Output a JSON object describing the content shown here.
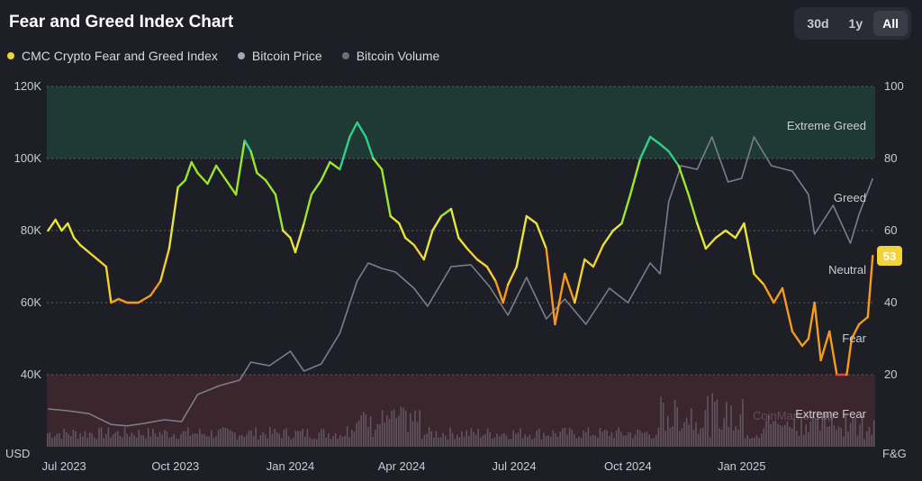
{
  "header": {
    "title": "Fear and Greed Index Chart",
    "ranges": [
      "30d",
      "1y",
      "All"
    ],
    "active_range": "All"
  },
  "legend": [
    {
      "label": "CMC Crypto Fear and Greed Index",
      "color": "#f3d23a"
    },
    {
      "label": "Bitcoin Price",
      "color": "#a4a7b3"
    },
    {
      "label": "Bitcoin Volume",
      "color": "#6b6e7a"
    }
  ],
  "chart_data": {
    "type": "line",
    "left_axis": {
      "unit_label": "USD",
      "ticks": [
        "40K",
        "60K",
        "80K",
        "100K",
        "120K"
      ],
      "range": [
        20000,
        120000
      ]
    },
    "right_axis": {
      "unit_label": "F&G",
      "ticks": [
        "20",
        "40",
        "60",
        "80",
        "100"
      ],
      "range": [
        0,
        100
      ]
    },
    "x_axis": {
      "ticks": [
        "Jul 2023",
        "Oct 2023",
        "Jan 2024",
        "Apr 2024",
        "Jul 2024",
        "Oct 2024",
        "Jan 2025"
      ]
    },
    "zones": [
      {
        "label": "Extreme Greed",
        "from": 80,
        "to": 100,
        "color": "#1f3a35"
      },
      {
        "label": "Greed",
        "from": 60,
        "to": 80
      },
      {
        "label": "Neutral",
        "from": 40,
        "to": 60
      },
      {
        "label": "Fear",
        "from": 20,
        "to": 40
      },
      {
        "label": "Extreme Fear",
        "from": 0,
        "to": 20,
        "color": "#3a262c"
      }
    ],
    "current_value": "53",
    "watermark": "CoinMarketCap",
    "series": [
      {
        "name": "CMC Crypto Fear and Greed Index",
        "axis": "right",
        "x": [
          "2023-06-29",
          "2023-07-05",
          "2023-07-10",
          "2023-07-15",
          "2023-07-20",
          "2023-07-25",
          "2023-08-01",
          "2023-08-08",
          "2023-08-15",
          "2023-08-19",
          "2023-08-25",
          "2023-09-01",
          "2023-09-10",
          "2023-09-20",
          "2023-09-28",
          "2023-10-05",
          "2023-10-12",
          "2023-10-18",
          "2023-10-23",
          "2023-10-28",
          "2023-11-05",
          "2023-11-12",
          "2023-11-20",
          "2023-11-28",
          "2023-12-05",
          "2023-12-10",
          "2023-12-15",
          "2023-12-22",
          "2023-12-30",
          "2024-01-05",
          "2024-01-11",
          "2024-01-15",
          "2024-01-22",
          "2024-01-28",
          "2024-02-05",
          "2024-02-12",
          "2024-02-20",
          "2024-02-28",
          "2024-03-05",
          "2024-03-12",
          "2024-03-18",
          "2024-03-25",
          "2024-04-01",
          "2024-04-08",
          "2024-04-13",
          "2024-04-20",
          "2024-04-28",
          "2024-05-05",
          "2024-05-12",
          "2024-05-20",
          "2024-05-26",
          "2024-06-02",
          "2024-06-10",
          "2024-06-18",
          "2024-06-25",
          "2024-07-01",
          "2024-07-05",
          "2024-07-12",
          "2024-07-20",
          "2024-07-28",
          "2024-08-05",
          "2024-08-12",
          "2024-08-20",
          "2024-08-28",
          "2024-09-05",
          "2024-09-12",
          "2024-09-20",
          "2024-09-28",
          "2024-10-05",
          "2024-10-12",
          "2024-10-20",
          "2024-10-28",
          "2024-11-05",
          "2024-11-12",
          "2024-11-20",
          "2024-11-28",
          "2024-12-05",
          "2024-12-12",
          "2024-12-20",
          "2024-12-28",
          "2025-01-05",
          "2025-01-12",
          "2025-01-20",
          "2025-01-28",
          "2025-02-05",
          "2025-02-12",
          "2025-02-20",
          "2025-02-28",
          "2025-03-05",
          "2025-03-10",
          "2025-03-15",
          "2025-03-22",
          "2025-03-28",
          "2025-04-05",
          "2025-04-09",
          "2025-04-15",
          "2025-04-22",
          "2025-04-26"
        ],
        "values": [
          60,
          63,
          60,
          62,
          58,
          56,
          54,
          52,
          50,
          40,
          41,
          40,
          40,
          42,
          46,
          55,
          72,
          74,
          79,
          76,
          73,
          78,
          74,
          70,
          85,
          82,
          76,
          74,
          70,
          60,
          58,
          54,
          62,
          70,
          74,
          79,
          77,
          86,
          90,
          86,
          80,
          77,
          64,
          62,
          58,
          56,
          52,
          60,
          64,
          66,
          58,
          55,
          52,
          50,
          46,
          40,
          45,
          50,
          64,
          62,
          55,
          34,
          48,
          40,
          52,
          50,
          56,
          60,
          62,
          70,
          80,
          86,
          84,
          82,
          78,
          70,
          62,
          55,
          58,
          60,
          58,
          62,
          48,
          45,
          40,
          44,
          32,
          28,
          30,
          40,
          24,
          32,
          20,
          20,
          30,
          34,
          36,
          53
        ]
      },
      {
        "name": "Bitcoin Price",
        "axis": "left",
        "x": [
          "2023-06-29",
          "2023-07-15",
          "2023-08-01",
          "2023-08-19",
          "2023-09-01",
          "2023-09-15",
          "2023-10-01",
          "2023-10-15",
          "2023-10-28",
          "2023-11-15",
          "2023-12-01",
          "2023-12-10",
          "2023-12-25",
          "2024-01-11",
          "2024-01-22",
          "2024-02-05",
          "2024-02-20",
          "2024-03-05",
          "2024-03-14",
          "2024-03-25",
          "2024-04-05",
          "2024-04-20",
          "2024-05-01",
          "2024-05-20",
          "2024-06-05",
          "2024-06-20",
          "2024-07-05",
          "2024-07-20",
          "2024-08-05",
          "2024-08-20",
          "2024-09-06",
          "2024-09-25",
          "2024-10-10",
          "2024-10-28",
          "2024-11-05",
          "2024-11-12",
          "2024-11-22",
          "2024-12-05",
          "2024-12-17",
          "2024-12-30",
          "2025-01-10",
          "2025-01-20",
          "2025-02-03",
          "2025-02-20",
          "2025-03-05",
          "2025-03-10",
          "2025-03-25",
          "2025-04-08",
          "2025-04-15",
          "2025-04-26"
        ],
        "values": [
          30500,
          30000,
          29200,
          26200,
          25800,
          26500,
          27500,
          27000,
          34500,
          37000,
          38500,
          43500,
          42500,
          46500,
          41000,
          43000,
          51500,
          66000,
          71000,
          69500,
          68500,
          64000,
          59000,
          70000,
          70500,
          64500,
          56500,
          67000,
          55500,
          61000,
          54000,
          64000,
          60000,
          71000,
          68000,
          88000,
          98000,
          97000,
          106000,
          93500,
          94500,
          106000,
          98000,
          96500,
          90000,
          79000,
          87000,
          76500,
          84500,
          94500
        ]
      }
    ]
  }
}
